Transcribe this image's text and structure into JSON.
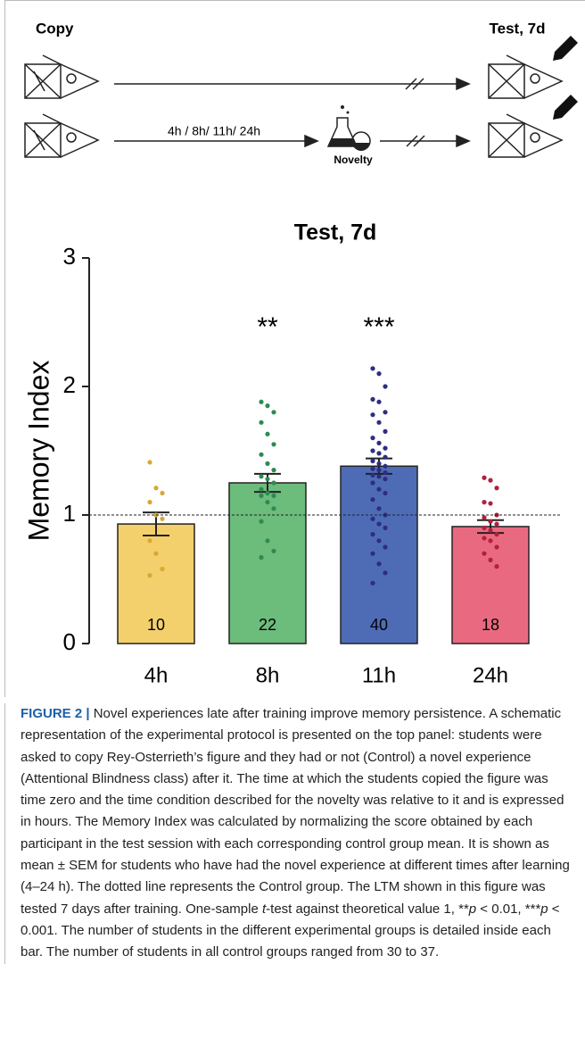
{
  "schematic": {
    "copy_label": "Copy",
    "test_label": "Test, 7d",
    "delay_label": "4h / 8h/ 11h/ 24h",
    "novelty_label": "Novelty"
  },
  "chart_data": {
    "type": "bar",
    "title": "Test, 7d",
    "y_label": "Memory Index",
    "categories": [
      "4h",
      "8h",
      "11h",
      "24h"
    ],
    "values": [
      0.93,
      1.25,
      1.38,
      0.91
    ],
    "errors": [
      0.09,
      0.07,
      0.06,
      0.05
    ],
    "n": [
      10,
      22,
      40,
      18
    ],
    "significance": [
      null,
      "**",
      "***",
      null
    ],
    "colors": [
      "#f4d06d",
      "#6cbc7c",
      "#4e6cb6",
      "#e96a80"
    ],
    "point_colors": [
      "#d9a831",
      "#2e8a52",
      "#2d2d82",
      "#b3203f"
    ],
    "points": [
      [
        1.41,
        1.21,
        1.17,
        1.1,
        1.0,
        0.97,
        0.8,
        0.7,
        0.58,
        0.53
      ],
      [
        1.88,
        1.85,
        1.8,
        1.72,
        1.63,
        1.55,
        1.47,
        1.4,
        1.35,
        1.3,
        1.28,
        1.25,
        1.2,
        1.17,
        1.15,
        1.15,
        1.1,
        1.05,
        0.95,
        0.8,
        0.72,
        0.67
      ],
      [
        2.14,
        2.1,
        2.0,
        1.9,
        1.88,
        1.8,
        1.78,
        1.72,
        1.65,
        1.6,
        1.56,
        1.52,
        1.5,
        1.48,
        1.45,
        1.42,
        1.4,
        1.38,
        1.36,
        1.35,
        1.33,
        1.31,
        1.3,
        1.28,
        1.25,
        1.2,
        1.17,
        1.12,
        1.05,
        1.0,
        0.97,
        0.93,
        0.9,
        0.85,
        0.8,
        0.75,
        0.7,
        0.62,
        0.55,
        0.47
      ],
      [
        1.29,
        1.27,
        1.21,
        1.1,
        1.09,
        1.0,
        0.98,
        0.95,
        0.93,
        0.9,
        0.88,
        0.85,
        0.82,
        0.8,
        0.75,
        0.7,
        0.65,
        0.6
      ]
    ],
    "reference_line": 1,
    "ylim": [
      0,
      3
    ],
    "yticks": [
      0,
      1,
      2,
      3
    ]
  },
  "caption": {
    "label": "FIGURE 2 |",
    "parts": [
      " Novel experiences late after training improve memory persistence. A schematic representation of the experimental protocol is presented on the top panel: students were asked to copy Rey-Osterrieth’s figure and they had or not (Control) a novel experience (Attentional Blindness class) after it. The time at which the students copied the figure was time zero and the time condition described for the novelty was relative to it and is expressed in hours. The Memory Index was calculated by normalizing the score obtained by each participant in the test session with each corresponding control group mean. It is shown as mean ± SEM for students who have had the novel experience at different times after learning (4–24 h). The dotted line represents the Control group. The LTM shown in this figure was tested 7 days after training. One-sample ",
      "t",
      "-test against theoretical value 1, **",
      "p",
      " < 0.01, ***",
      "p",
      " < 0.001. The number of students in the different experimental groups is detailed inside each bar. The number of students in all control groups ranged from 30 to 37."
    ]
  }
}
